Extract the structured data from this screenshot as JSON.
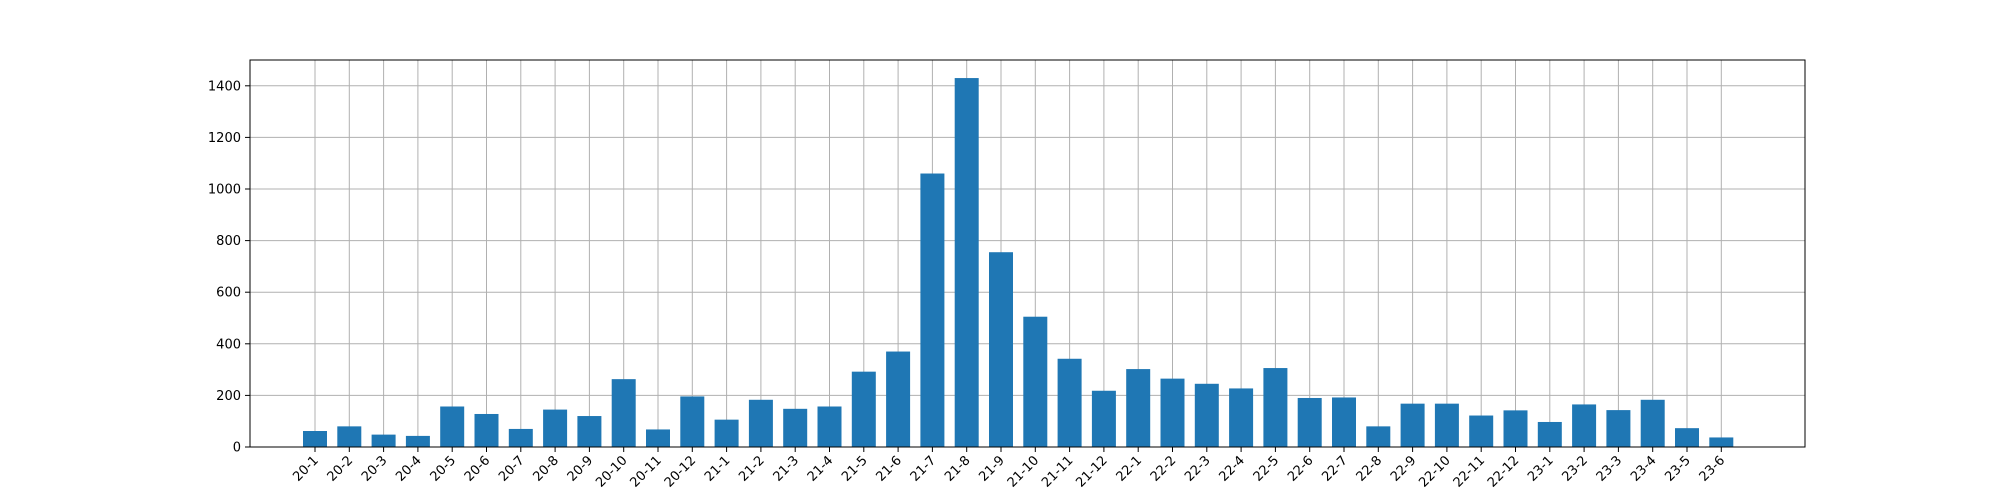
{
  "chart_data": {
    "type": "bar",
    "title": "",
    "xlabel": "",
    "ylabel": "",
    "categories": [
      "20-1",
      "20-2",
      "20-3",
      "20-4",
      "20-5",
      "20-6",
      "20-7",
      "20-8",
      "20-9",
      "20-10",
      "20-11",
      "20-12",
      "21-1",
      "21-2",
      "21-3",
      "21-4",
      "21-5",
      "21-6",
      "21-7",
      "21-8",
      "21-9",
      "21-10",
      "21-11",
      "21-12",
      "22-1",
      "22-2",
      "22-3",
      "22-4",
      "22-5",
      "22-6",
      "22-7",
      "22-8",
      "22-9",
      "22-10",
      "22-11",
      "22-12",
      "23-1",
      "23-2",
      "23-3",
      "23-4",
      "23-5",
      "23-6"
    ],
    "values": [
      62,
      80,
      48,
      43,
      157,
      128,
      70,
      145,
      120,
      263,
      68,
      196,
      106,
      183,
      148,
      157,
      292,
      370,
      1060,
      1430,
      755,
      505,
      342,
      218,
      302,
      265,
      245,
      227,
      306,
      190,
      192,
      80,
      168,
      168,
      122,
      142,
      97,
      165,
      143,
      183,
      73,
      37
    ],
    "ylim": [
      0,
      1500
    ],
    "yticks": [
      0,
      200,
      400,
      600,
      800,
      1000,
      1200,
      1400
    ],
    "grid": true,
    "bar_color": "#1f77b4"
  }
}
